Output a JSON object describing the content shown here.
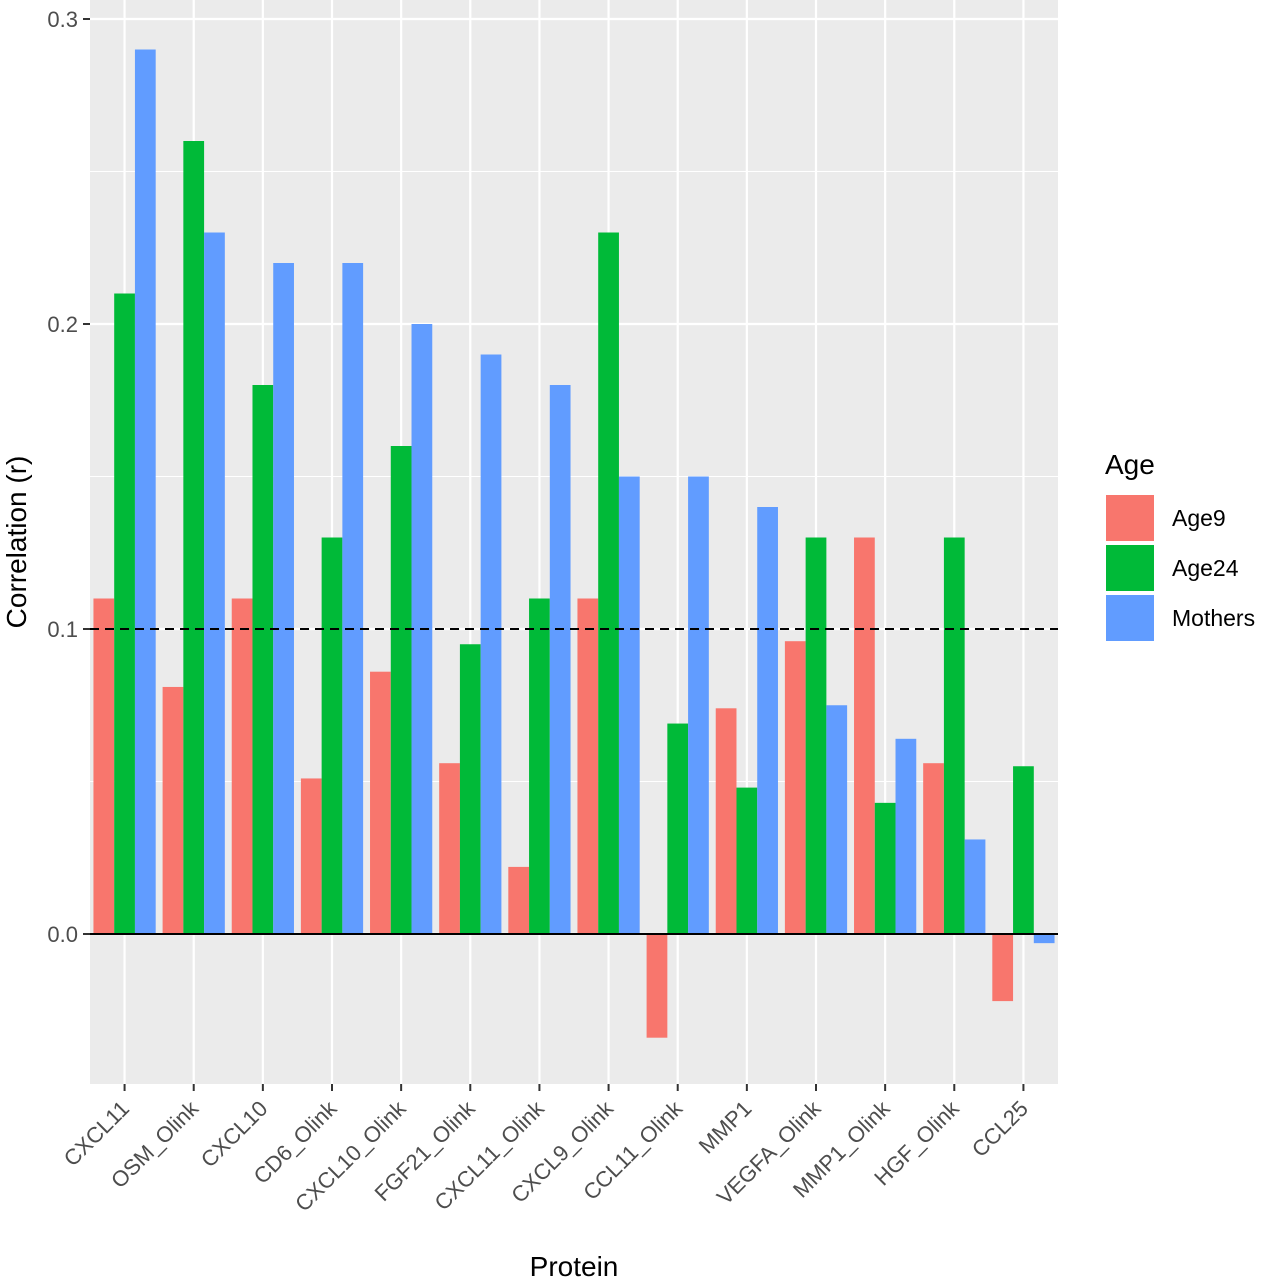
{
  "chart_data": {
    "type": "bar",
    "xlabel": "Protein",
    "ylabel": "Correlation (r)",
    "categories": [
      "CXCL11",
      "OSM_Olink",
      "CXCL10",
      "CD6_Olink",
      "CXCL10_Olink",
      "FGF21_Olink",
      "CXCL11_Olink",
      "CXCL9_Olink",
      "CCL11_Olink",
      "MMP1",
      "VEGFA_Olink",
      "MMP1_Olink",
      "HGF_Olink",
      "CCL25"
    ],
    "series": [
      {
        "name": "Age9",
        "color": "#F8766D",
        "values": [
          0.11,
          0.081,
          0.11,
          0.051,
          0.086,
          0.056,
          0.022,
          0.11,
          -0.034,
          0.074,
          0.096,
          0.13,
          0.056,
          -0.022
        ]
      },
      {
        "name": "Age24",
        "color": "#00BA38",
        "values": [
          0.21,
          0.26,
          0.18,
          0.13,
          0.16,
          0.095,
          0.11,
          0.23,
          0.069,
          0.048,
          0.13,
          0.043,
          0.13,
          0.055
        ]
      },
      {
        "name": "Mothers",
        "color": "#619CFF",
        "values": [
          0.29,
          0.23,
          0.22,
          0.22,
          0.2,
          0.19,
          0.18,
          0.15,
          0.15,
          0.14,
          0.075,
          0.064,
          0.031,
          -0.003
        ]
      }
    ],
    "ylim": [
      -0.049,
      0.303
    ],
    "yticks": [
      0.0,
      0.1,
      0.2,
      0.3
    ],
    "ytick_labels": [
      "0.0",
      "0.1",
      "0.2",
      "0.3"
    ],
    "reference_line": {
      "value": 0.1,
      "style": "dashed"
    },
    "zero_line": true,
    "grid": true,
    "legend": {
      "title": "Age",
      "position": "right"
    },
    "panel_background": "#EBEBEB",
    "grid_color": "#FFFFFF"
  }
}
